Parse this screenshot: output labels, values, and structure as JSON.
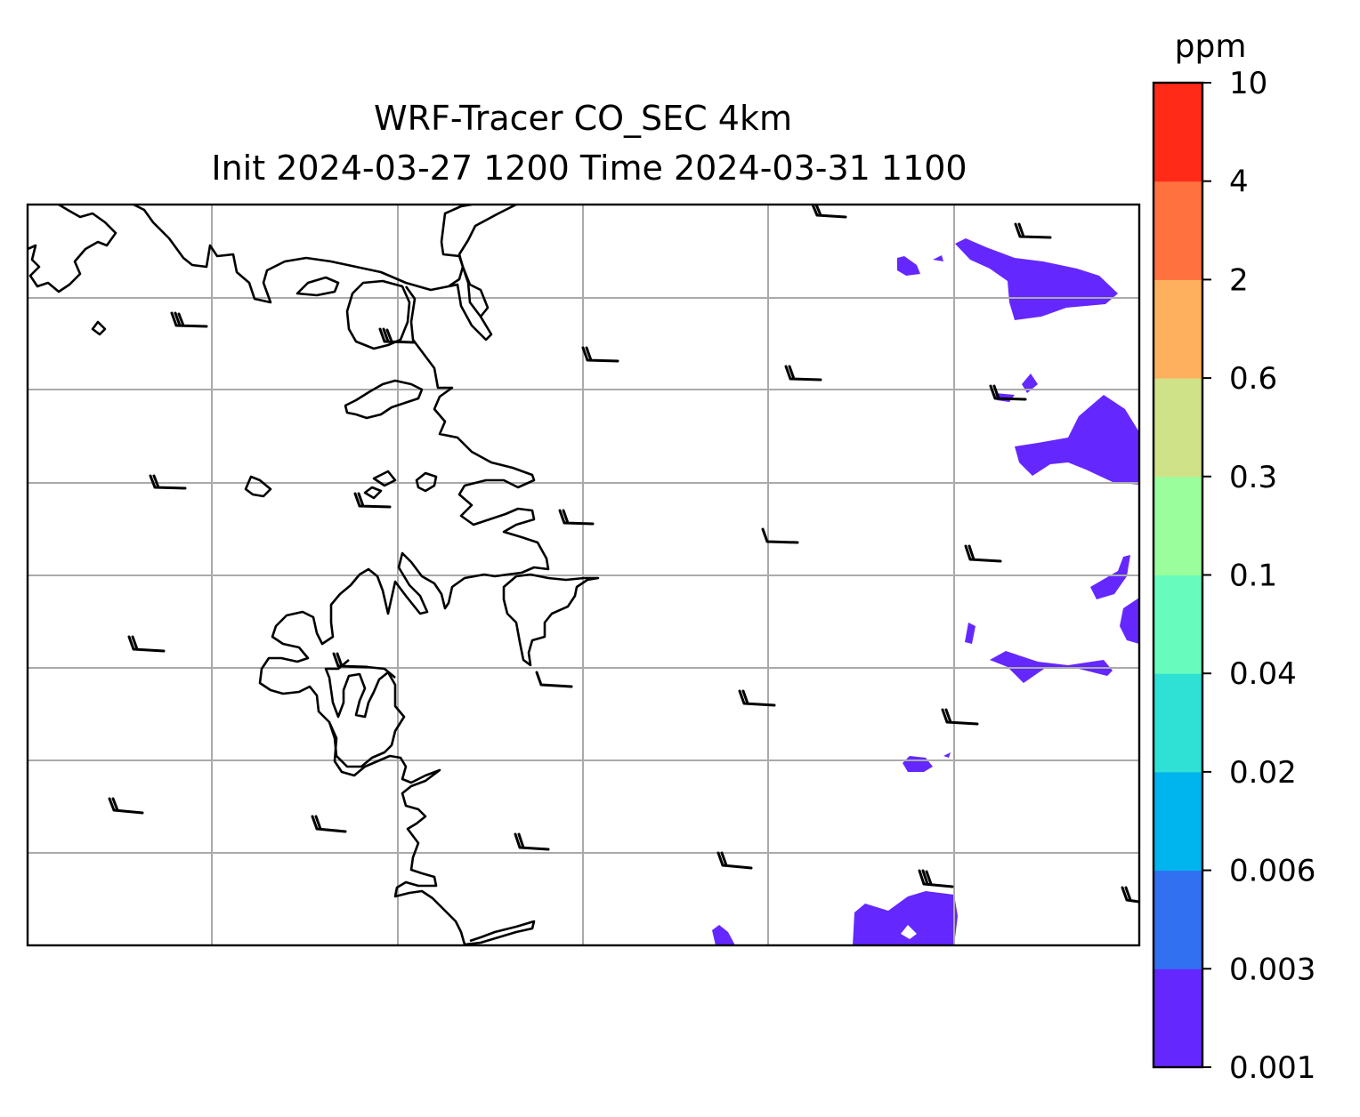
{
  "title": {
    "line1": "WRF-Tracer CO_SEC 4km",
    "line2": "Init 2024-03-27 1200 Time 2024-03-31 1100"
  },
  "colorbar": {
    "unit": "ppm",
    "levels": [
      "0.001",
      "0.003",
      "0.006",
      "0.02",
      "0.04",
      "0.1",
      "0.3",
      "0.6",
      "2",
      "4",
      "10"
    ],
    "colors": [
      "#6428ff",
      "#3270f2",
      "#00b4ee",
      "#2fe0d5",
      "#67fcbd",
      "#9afe9c",
      "#cfe287",
      "#ffb05e",
      "#ff713e",
      "#ff2a18"
    ]
  },
  "map": {
    "gridlines": true,
    "coastline_color": "#000000",
    "grid_color": "#aaaaaa",
    "wind_barbs": "black",
    "tracer_field_color": "#6428ff"
  }
}
